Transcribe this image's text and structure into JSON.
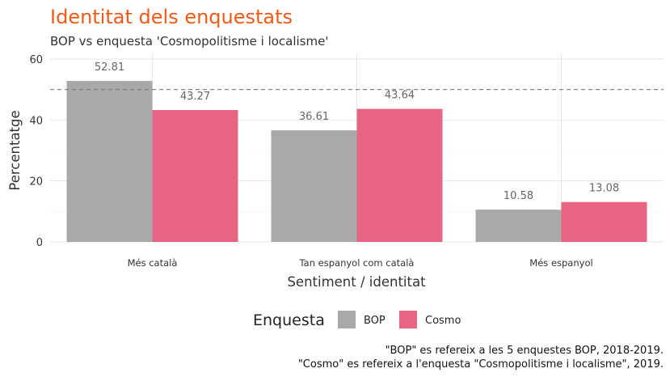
{
  "chart_data": {
    "type": "bar",
    "title": "Identitat dels enquestats",
    "subtitle": "BOP vs enquesta 'Cosmopolitisme i localisme'",
    "xlabel": "Sentiment / identitat",
    "ylabel": "Percentatge",
    "categories": [
      "Més català",
      "Tan espanyol com català",
      "Més espanyol"
    ],
    "series": [
      {
        "name": "BOP",
        "values": [
          52.81,
          36.61,
          10.58
        ],
        "color": "#a9a9a9"
      },
      {
        "name": "Cosmo",
        "values": [
          43.27,
          43.64,
          13.08
        ],
        "color": "#e86482"
      }
    ],
    "ylim": [
      0,
      60
    ],
    "yticks": [
      0,
      20,
      40,
      60
    ],
    "reference_line": 50,
    "grid": true,
    "legend": {
      "title": "Enquesta",
      "position": "bottom"
    },
    "caption": [
      "\"BOP\" es refereix a les 5 enquestes BOP, 2018-2019.",
      "\"Cosmo\" es refereix a l'enquesta \"Cosmopolitisme i localisme\", 2019."
    ]
  }
}
